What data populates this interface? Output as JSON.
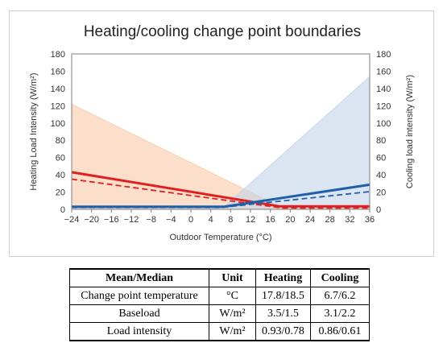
{
  "chart_data": {
    "type": "line",
    "title": "Heating/cooling change point boundaries",
    "xlabel": "Outdoor Temperature (°C)",
    "ylabel_left": "Heating Load Intensity (W/m²)",
    "ylabel_right": "Cooling load intensity (W/m²)",
    "xlim": [
      -24,
      36
    ],
    "ylim": [
      0,
      180
    ],
    "x_ticks": [
      -24,
      -20,
      -16,
      -12,
      -8,
      -4,
      0,
      4,
      8,
      12,
      16,
      20,
      24,
      28,
      32,
      36
    ],
    "y_ticks": [
      0,
      20,
      40,
      60,
      80,
      100,
      120,
      140,
      160,
      180
    ],
    "grid": false,
    "legend": "none",
    "series": [
      {
        "kind": "band",
        "color": "#f8c9a6",
        "x": [
          -24,
          17.8,
          36,
          36,
          -24
        ],
        "y": [
          122,
          3.5,
          3.5,
          0,
          0
        ]
      },
      {
        "kind": "band",
        "color": "#c3d4ea",
        "x": [
          -24,
          6.7,
          36,
          36,
          -24
        ],
        "y": [
          3.1,
          3.1,
          154,
          0,
          0
        ]
      },
      {
        "kind": "line",
        "color": "#e02020",
        "style": "solid",
        "x": [
          -24,
          17.8,
          36
        ],
        "y": [
          43,
          3.5,
          3.5
        ]
      },
      {
        "kind": "line",
        "color": "#e02020",
        "style": "dashed",
        "x": [
          -24,
          18.5,
          36
        ],
        "y": [
          35,
          1.5,
          1.5
        ]
      },
      {
        "kind": "line",
        "color": "#1f5fa8",
        "style": "solid",
        "x": [
          -24,
          6.7,
          36
        ],
        "y": [
          3.1,
          3.1,
          28.5
        ]
      },
      {
        "kind": "line",
        "color": "#1f5fa8",
        "style": "dashed",
        "x": [
          -24,
          6.2,
          36
        ],
        "y": [
          2.2,
          2.2,
          20.5
        ]
      }
    ]
  },
  "table": {
    "headers": [
      "Mean/Median",
      "Unit",
      "Heating",
      "Cooling"
    ],
    "rows": [
      [
        "Change point temperature",
        "°C",
        "17.8/18.5",
        "6.7/6.2"
      ],
      [
        "Baseload",
        "W/m²",
        "3.5/1.5",
        "3.1/2.2"
      ],
      [
        "Load intensity",
        "W/m²",
        "0.93/0.78",
        "0.86/0.61"
      ]
    ]
  }
}
